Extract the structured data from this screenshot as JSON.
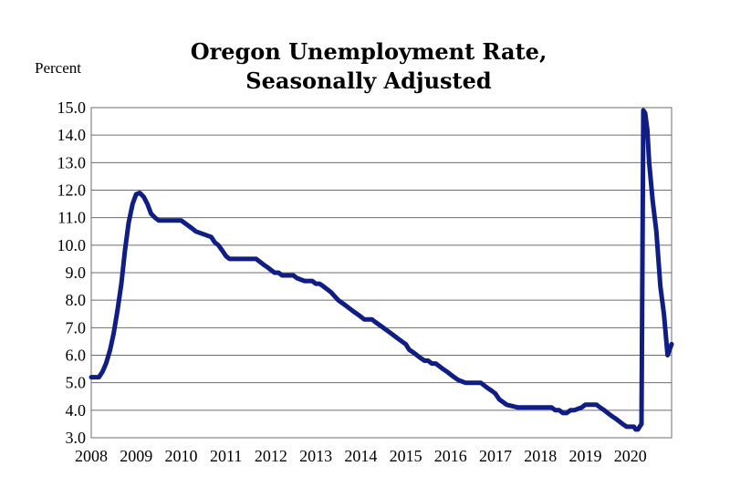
{
  "chart_data": {
    "type": "line",
    "title": [
      "Oregon Unemployment Rate,",
      "Seasonally Adjusted"
    ],
    "ylabel": "Percent",
    "xlabel": "",
    "ylim": [
      3.0,
      15.0
    ],
    "xlim": [
      2008.0,
      2020.92
    ],
    "yticks": [
      "3.0",
      "4.0",
      "5.0",
      "6.0",
      "7.0",
      "8.0",
      "9.0",
      "10.0",
      "11.0",
      "12.0",
      "13.0",
      "14.0",
      "15.0"
    ],
    "xticks": [
      "2008",
      "2009",
      "2010",
      "2011",
      "2012",
      "2013",
      "2014",
      "2015",
      "2016",
      "2017",
      "2018",
      "2019",
      "2020"
    ],
    "grid": true,
    "series": [
      {
        "color": "#0f1d85",
        "x": [
          2008.0,
          2008.17,
          2008.25,
          2008.33,
          2008.42,
          2008.5,
          2008.58,
          2008.67,
          2008.75,
          2008.83,
          2008.92,
          2009.0,
          2009.08,
          2009.17,
          2009.25,
          2009.33,
          2009.42,
          2009.5,
          2009.58,
          2009.67,
          2009.75,
          2009.83,
          2010.0,
          2010.25,
          2010.33,
          2010.5,
          2010.67,
          2010.75,
          2010.83,
          2010.92,
          2011.0,
          2011.08,
          2011.17,
          2011.33,
          2011.5,
          2011.67,
          2011.75,
          2011.83,
          2011.92,
          2012.0,
          2012.08,
          2012.17,
          2012.25,
          2012.33,
          2012.5,
          2012.58,
          2012.75,
          2012.83,
          2012.92,
          2013.0,
          2013.08,
          2013.17,
          2013.33,
          2013.5,
          2013.67,
          2013.83,
          2013.92,
          2014.0,
          2014.08,
          2014.17,
          2014.25,
          2014.33,
          2014.5,
          2014.67,
          2014.75,
          2014.83,
          2015.0,
          2015.08,
          2015.17,
          2015.25,
          2015.33,
          2015.42,
          2015.5,
          2015.58,
          2015.67,
          2015.75,
          2015.83,
          2015.92,
          2016.0,
          2016.08,
          2016.17,
          2016.33,
          2016.5,
          2016.67,
          2016.75,
          2016.83,
          2016.92,
          2017.0,
          2017.08,
          2017.25,
          2017.5,
          2017.75,
          2018.0,
          2018.08,
          2018.17,
          2018.25,
          2018.33,
          2018.42,
          2018.5,
          2018.58,
          2018.67,
          2018.75,
          2018.92,
          2019.0,
          2019.08,
          2019.17,
          2019.25,
          2019.33,
          2019.42,
          2019.5,
          2019.58,
          2019.67,
          2019.75,
          2019.83,
          2019.92,
          2020.0,
          2020.08,
          2020.12,
          2020.17,
          2020.21,
          2020.25,
          2020.29,
          2020.33,
          2020.38,
          2020.42,
          2020.5,
          2020.58,
          2020.67,
          2020.75,
          2020.83,
          2020.92
        ],
        "y": [
          5.2,
          5.2,
          5.4,
          5.7,
          6.2,
          6.8,
          7.6,
          8.6,
          9.8,
          10.8,
          11.5,
          11.85,
          11.9,
          11.75,
          11.5,
          11.15,
          11.0,
          10.9,
          10.9,
          10.9,
          10.9,
          10.9,
          10.9,
          10.6,
          10.5,
          10.4,
          10.3,
          10.1,
          10.0,
          9.8,
          9.6,
          9.5,
          9.5,
          9.5,
          9.5,
          9.5,
          9.4,
          9.3,
          9.2,
          9.1,
          9.0,
          9.0,
          8.9,
          8.9,
          8.9,
          8.8,
          8.7,
          8.7,
          8.7,
          8.6,
          8.6,
          8.5,
          8.3,
          8.0,
          7.8,
          7.6,
          7.5,
          7.4,
          7.3,
          7.3,
          7.3,
          7.2,
          7.0,
          6.8,
          6.7,
          6.6,
          6.4,
          6.2,
          6.1,
          6.0,
          5.9,
          5.8,
          5.8,
          5.7,
          5.7,
          5.6,
          5.5,
          5.4,
          5.3,
          5.2,
          5.1,
          5.0,
          5.0,
          5.0,
          4.9,
          4.8,
          4.7,
          4.6,
          4.4,
          4.2,
          4.1,
          4.1,
          4.1,
          4.1,
          4.1,
          4.1,
          4.0,
          4.0,
          3.9,
          3.9,
          4.0,
          4.0,
          4.1,
          4.2,
          4.2,
          4.2,
          4.2,
          4.1,
          4.0,
          3.9,
          3.8,
          3.7,
          3.6,
          3.5,
          3.4,
          3.4,
          3.4,
          3.3,
          3.3,
          3.4,
          3.5,
          14.9,
          14.8,
          14.2,
          13.0,
          11.6,
          10.5,
          8.5,
          7.5,
          6.0,
          6.4
        ]
      }
    ]
  }
}
